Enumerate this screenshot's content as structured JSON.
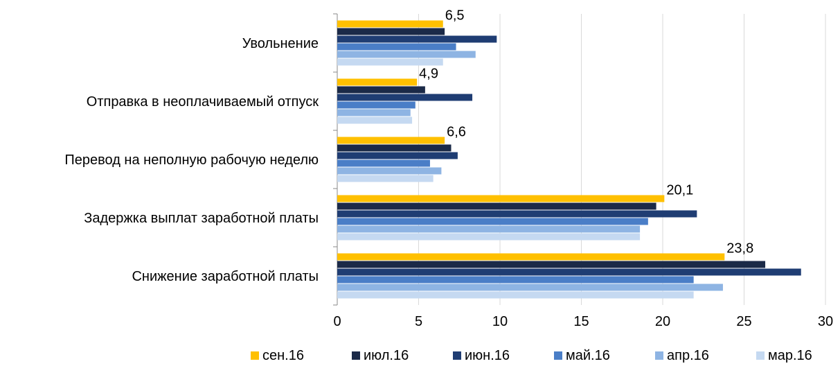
{
  "chart_data": {
    "type": "bar",
    "orientation": "horizontal",
    "categories": [
      "Увольнение",
      "Отправка в неоплачиваемый отпуск",
      "Перевод на неполную рабочую неделю",
      "Задержка выплат заработной платы",
      "Снижение заработной платы"
    ],
    "series": [
      {
        "name": "сен.16",
        "color": "#FFC000",
        "values": [
          6.5,
          4.9,
          6.6,
          20.1,
          23.8
        ],
        "value_labels": [
          "6,5",
          "4,9",
          "6,6",
          "20,1",
          "23,8"
        ]
      },
      {
        "name": "июл.16",
        "color": "#1B2A48",
        "values": [
          6.6,
          5.4,
          7.0,
          19.6,
          26.3
        ]
      },
      {
        "name": "июн.16",
        "color": "#1F3D73",
        "values": [
          9.8,
          8.3,
          7.4,
          22.1,
          28.5
        ]
      },
      {
        "name": "май.16",
        "color": "#4A7EC7",
        "values": [
          7.3,
          4.8,
          5.7,
          19.1,
          21.9
        ]
      },
      {
        "name": "апр.16",
        "color": "#8EB4E3",
        "values": [
          8.5,
          4.5,
          6.4,
          18.6,
          23.7
        ]
      },
      {
        "name": "мар.16",
        "color": "#C5D9F1",
        "values": [
          6.5,
          4.6,
          5.9,
          18.6,
          21.9
        ]
      }
    ],
    "xlim": [
      0,
      30
    ],
    "xticks": [
      0,
      5,
      10,
      15,
      20,
      25,
      30
    ],
    "grid": true,
    "legend": "bottom"
  }
}
